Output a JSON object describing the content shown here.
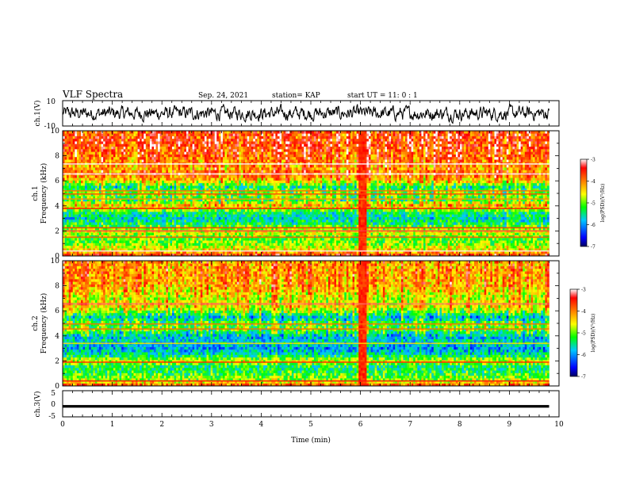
{
  "header": {
    "title": "VLF Spectra",
    "date": "Sep. 24, 2021",
    "station": "station= KAP",
    "start_ut": "start  UT =   11: 0  : 1"
  },
  "chart_data": [
    {
      "type": "line",
      "panel": "ch1-waveform",
      "ylabel": "ch.1(V)",
      "ylim": [
        -10,
        10
      ],
      "ytick_labels": [
        "10",
        "-10"
      ],
      "xlim": [
        0,
        10
      ],
      "color": "#000000",
      "amplitude_note": "noise around 0 V between about -6 and +6 V"
    },
    {
      "type": "heatmap",
      "panel": "ch1-spectrogram",
      "ylabel": "ch.1\nFrequency (kHz)",
      "ylim": [
        0,
        10
      ],
      "ytick_labels": [
        "0",
        "2",
        "4",
        "6",
        "8",
        "10"
      ],
      "xlim": [
        0,
        10
      ],
      "data_end_min": 9.8,
      "colorbar": {
        "label": "log(PSD)(V²/Hz)",
        "range": [
          -7,
          -3
        ],
        "tick_labels": [
          "-3",
          "-4",
          "-5",
          "-6",
          "-7"
        ],
        "colors": [
          "#000060",
          "#0000ff",
          "#00c8ff",
          "#00ff00",
          "#ffff00",
          "#ff8000",
          "#ff0000",
          "#ffffff"
        ]
      },
      "profile_by_freq_khz": [
        [
          0,
          -3.6
        ],
        [
          0.5,
          -4.5
        ],
        [
          1.0,
          -5.0
        ],
        [
          1.5,
          -5.1
        ],
        [
          2.0,
          -4.6
        ],
        [
          2.5,
          -5.3
        ],
        [
          3.0,
          -5.7
        ],
        [
          3.5,
          -5.4
        ],
        [
          4.0,
          -4.3
        ],
        [
          4.5,
          -5.4
        ],
        [
          5.0,
          -5.0
        ],
        [
          5.5,
          -5.6
        ],
        [
          6.0,
          -4.6
        ],
        [
          6.5,
          -4.0
        ],
        [
          7.0,
          -4.3
        ],
        [
          8.0,
          -4.0
        ],
        [
          9.0,
          -3.8
        ],
        [
          10.0,
          -3.9
        ]
      ],
      "lines_khz": [
        0.4,
        1.5,
        2.0,
        2.25,
        3.8,
        4.55,
        4.95,
        5.2,
        6.55,
        7.35
      ],
      "broadband_event_min": 6.05
    },
    {
      "type": "heatmap",
      "panel": "ch2-spectrogram",
      "ylabel": "ch.2\nFrequency (kHz)",
      "ylim": [
        0,
        10
      ],
      "ytick_labels": [
        "0",
        "2",
        "4",
        "6",
        "8",
        "10"
      ],
      "xlim": [
        0,
        10
      ],
      "data_end_min": 9.8,
      "colorbar": {
        "label": "log(PSD)(V²/Hz)",
        "range": [
          -7,
          -3
        ],
        "tick_labels": [
          "-3",
          "-4",
          "-5",
          "-6",
          "-7"
        ],
        "colors": [
          "#000060",
          "#0000ff",
          "#00c8ff",
          "#00ff00",
          "#ffff00",
          "#ff8000",
          "#ff0000",
          "#ffffff"
        ]
      },
      "profile_by_freq_khz": [
        [
          0,
          -3.8
        ],
        [
          0.5,
          -4.9
        ],
        [
          1.0,
          -5.2
        ],
        [
          1.5,
          -5.5
        ],
        [
          2.0,
          -4.7
        ],
        [
          2.5,
          -5.6
        ],
        [
          3.0,
          -6.0
        ],
        [
          3.5,
          -5.7
        ],
        [
          4.0,
          -5.9
        ],
        [
          4.5,
          -5.2
        ],
        [
          5.0,
          -5.2
        ],
        [
          5.5,
          -5.9
        ],
        [
          6.0,
          -5.0
        ],
        [
          6.5,
          -4.5
        ],
        [
          7.0,
          -4.8
        ],
        [
          8.0,
          -4.3
        ],
        [
          9.0,
          -4.2
        ],
        [
          10.0,
          -4.3
        ]
      ],
      "lines_khz": [
        0.4,
        1.9,
        3.4,
        4.55,
        4.95,
        6.55
      ],
      "broadband_event_min": 6.05
    },
    {
      "type": "line",
      "panel": "ch3-waveform",
      "ylabel": "ch.3(V)",
      "ylim": [
        -5,
        5
      ],
      "ytick_labels": [
        "5",
        "0",
        "-5"
      ],
      "xlim": [
        0,
        10
      ],
      "xlabel": "Time (min)",
      "xtick_labels": [
        "0",
        "1",
        "2",
        "3",
        "4",
        "5",
        "6",
        "7",
        "8",
        "9",
        "10"
      ],
      "color": "#000000",
      "amplitude_note": "thick constant band near -1 V from 0 to 9.8 min"
    }
  ]
}
